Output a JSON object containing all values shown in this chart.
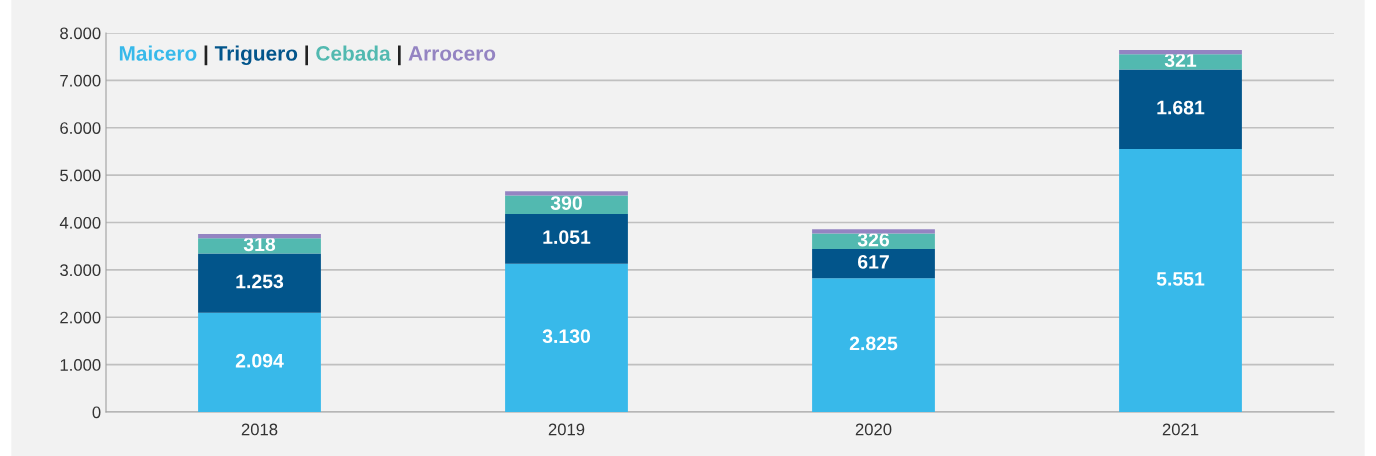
{
  "chart_data": {
    "type": "bar",
    "stacked": true,
    "categories": [
      "2018",
      "2019",
      "2020",
      "2021"
    ],
    "series": [
      {
        "name": "Maicero",
        "color": "#38b9ea",
        "values": [
          2094,
          3130,
          2825,
          5551
        ],
        "value_labels": [
          "2.094",
          "3.130",
          "2.825",
          "5.551"
        ]
      },
      {
        "name": "Triguero",
        "color": "#02558b",
        "values": [
          1253,
          1051,
          617,
          1681
        ],
        "value_labels": [
          "1.253",
          "1.051",
          "617",
          "1.681"
        ]
      },
      {
        "name": "Cebada",
        "color": "#52b9b0",
        "values": [
          318,
          390,
          326,
          321
        ],
        "value_labels": [
          "318",
          "390",
          "326",
          "321"
        ]
      },
      {
        "name": "Arrocero",
        "color": "#9484c2",
        "values": [
          90,
          90,
          90,
          90
        ]
      }
    ],
    "ylim": [
      0,
      8000
    ],
    "yticks": [
      {
        "value": 0,
        "label": "0"
      },
      {
        "value": 1000,
        "label": "1.000"
      },
      {
        "value": 2000,
        "label": "2.000"
      },
      {
        "value": 3000,
        "label": "3.000"
      },
      {
        "value": 4000,
        "label": "4.000"
      },
      {
        "value": 5000,
        "label": "5.000"
      },
      {
        "value": 6000,
        "label": "6.000"
      },
      {
        "value": 7000,
        "label": "7.000"
      },
      {
        "value": 8000,
        "label": "8.000"
      }
    ],
    "grid": "y",
    "legend": "top left",
    "annotations": [
      "|",
      "|",
      "|"
    ]
  }
}
